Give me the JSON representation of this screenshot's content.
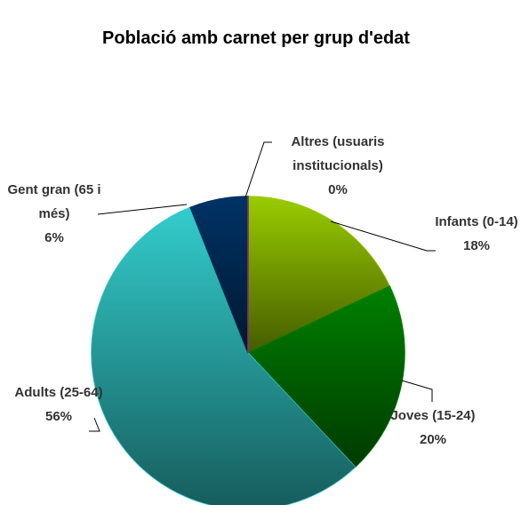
{
  "chart_data": {
    "type": "pie",
    "title": "Població amb carnet per grup d'edat",
    "categories": [
      "Infants (0-14)",
      "Joves (15-24)",
      "Adults (25-64)",
      "Gent gran (65 i més)",
      "Altres (usuaris institucionals)"
    ],
    "values": [
      18,
      20,
      56,
      6,
      0
    ],
    "value_labels": [
      "18%",
      "20%",
      "56%",
      "6%",
      "0%"
    ],
    "colors": [
      "#99cc00",
      "#008000",
      "#33cccc",
      "#003366",
      "#993366"
    ]
  }
}
